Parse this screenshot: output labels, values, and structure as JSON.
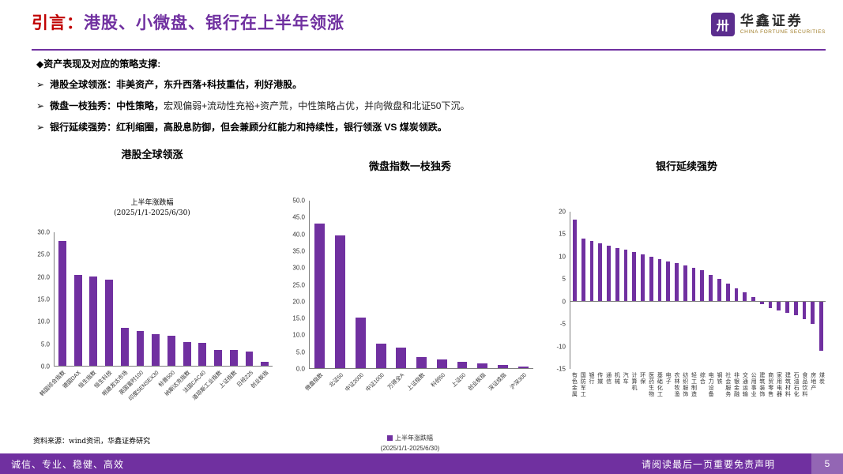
{
  "header": {
    "title_accent": "引言：",
    "title_main": "港股、小微盘、银行在上半年领涨",
    "logo": {
      "name": "华鑫证券",
      "subtitle": "CHINA FORTUNE SECURITIES"
    }
  },
  "icons": {
    "logo": "卅"
  },
  "intro": {
    "heading_marker": "◆",
    "heading": "资产表现及对应的策略支撑:",
    "bullets": [
      {
        "marker": "➢",
        "bold": "港股全球领涨：非美资产，东升西落+科技重估，利好港股。",
        "normal": ""
      },
      {
        "marker": "➢",
        "bold": "微盘一枝独秀：中性策略，",
        "normal": "宏观偏弱+流动性充裕+资产荒，中性策略占优，并向微盘和北证50下沉。"
      },
      {
        "marker": "➢",
        "bold": "银行延续强势：红利缩圈，高股息防御，但会兼顾分红能力和持续性，银行领涨 VS 煤炭领跌。",
        "normal": ""
      }
    ]
  },
  "colors": {
    "accent_red": "#c00000",
    "brand_purple": "#7030a0",
    "bar_purple": "#7030a0",
    "footer_page_bg": "#9366b4",
    "logo_gold": "#a07d28"
  },
  "chart_data": [
    {
      "type": "bar",
      "title": "港股全球领涨",
      "subtitle_line1": "上半年涨跌幅",
      "subtitle_line2": "(2025/1/1-2025/6/30)",
      "categories": [
        "韩国综合指数",
        "德国DAX",
        "恒生指数",
        "恒生科技",
        "明晟发达市场",
        "英国富时100",
        "印度SENSEX30",
        "标普500",
        "纳斯达克指数",
        "法国CAC40",
        "道琼斯工业指数",
        "上证指数",
        "日经225",
        "创业板指"
      ],
      "values": [
        28.0,
        20.4,
        20.0,
        19.3,
        8.6,
        7.9,
        7.2,
        6.7,
        5.3,
        5.1,
        3.6,
        3.5,
        3.2,
        0.9
      ],
      "xlabel": "",
      "ylabel": "",
      "ylim": [
        0,
        30
      ],
      "yticks": [
        0,
        5,
        10,
        15,
        20,
        25,
        30
      ],
      "tick_decimals": 1,
      "grid": false,
      "bar_color": "#7030a0",
      "label_orientation": "slant"
    },
    {
      "type": "bar",
      "title": "微盘指数一枝独秀",
      "legend": "上半年涨跌幅",
      "legend_note": "(2025/1/1-2025/6/30)",
      "legend_position": "bottom",
      "categories": [
        "微盘指数",
        "北证50",
        "中证2000",
        "中证1000",
        "万得全A",
        "上证指数",
        "科创50",
        "上证50",
        "创业板指",
        "深证成指",
        "沪深300"
      ],
      "values": [
        43.2,
        39.7,
        15.0,
        7.3,
        6.1,
        3.3,
        2.6,
        1.9,
        1.4,
        0.9,
        0.5
      ],
      "xlabel": "",
      "ylabel": "",
      "ylim": [
        0,
        50
      ],
      "yticks": [
        0,
        5,
        10,
        15,
        20,
        25,
        30,
        35,
        40,
        45,
        50
      ],
      "tick_decimals": 1,
      "grid": false,
      "bar_color": "#7030a0",
      "label_orientation": "slant"
    },
    {
      "type": "bar",
      "title": "银行延续强势",
      "categories": [
        "有色金属",
        "国防军工",
        "银行",
        "传媒",
        "通信",
        "机械",
        "汽车",
        "计算机",
        "环保",
        "医药生物",
        "基础化工",
        "电子",
        "农林牧渔",
        "纺织服饰",
        "轻工制造",
        "综合",
        "电力设备",
        "钢铁",
        "社会服务",
        "非银金融",
        "交通运输",
        "公用事业",
        "建筑装饰",
        "商贸零售",
        "家用电器",
        "建筑材料",
        "石油石化",
        "食品饮料",
        "房地产",
        "煤炭"
      ],
      "values": [
        18.2,
        14.0,
        13.5,
        13.0,
        12.5,
        12.0,
        11.5,
        11.0,
        10.5,
        10.0,
        9.5,
        9.0,
        8.5,
        8.0,
        7.5,
        7.0,
        6.0,
        5.0,
        4.0,
        3.0,
        2.0,
        1.0,
        -0.5,
        -1.5,
        -2.0,
        -2.5,
        -3.0,
        -4.0,
        -5.0,
        -11.0
      ],
      "xlabel": "",
      "ylabel": "",
      "ylim": [
        -15,
        20
      ],
      "yticks": [
        -15,
        -10,
        -5,
        0,
        5,
        10,
        15,
        20
      ],
      "tick_decimals": 0,
      "grid": false,
      "bar_color": "#7030a0",
      "label_orientation": "vertical"
    }
  ],
  "source_note": "资料来源：wind资讯，华鑫证券研究",
  "footer": {
    "left": "诚信、专业、稳健、高效",
    "right": "请阅读最后一页重要免责声明",
    "page": "5"
  }
}
